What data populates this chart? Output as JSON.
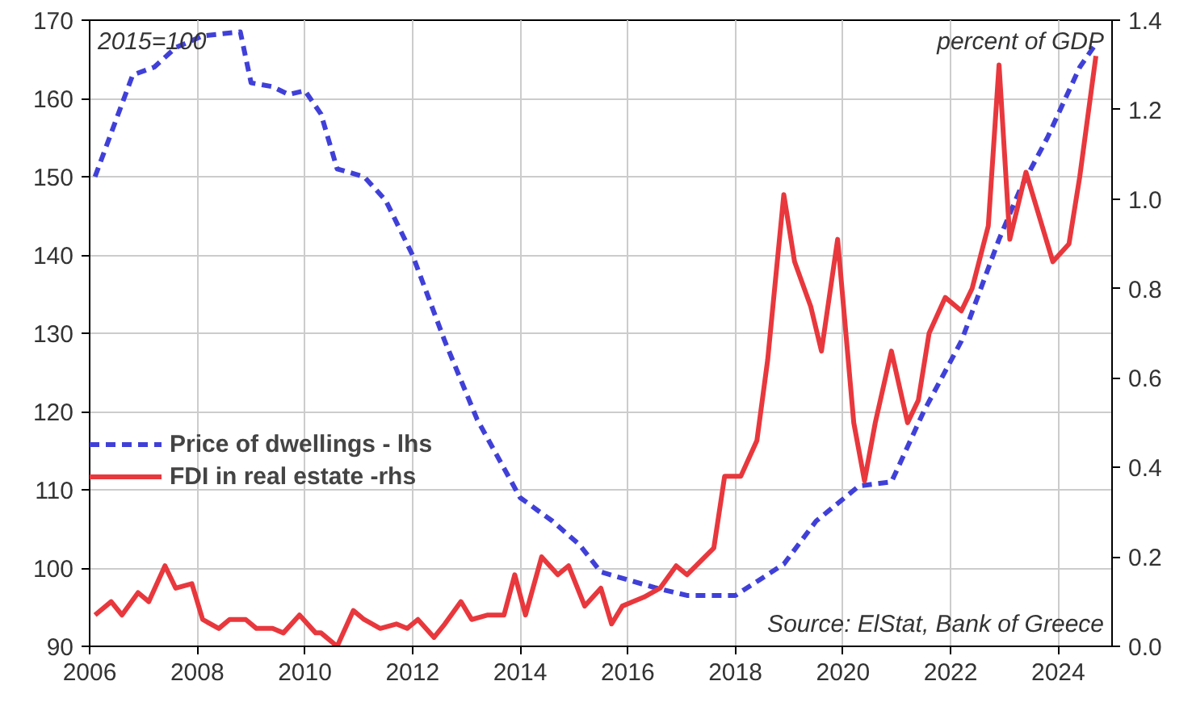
{
  "chart_data": {
    "type": "line",
    "annotations": [
      "2015=100",
      "percent of GDP",
      "Source: ElStat, Bank of Greece"
    ],
    "xlim": [
      2006,
      2025
    ],
    "xticks": [
      2006,
      2008,
      2010,
      2012,
      2014,
      2016,
      2018,
      2020,
      2022,
      2024
    ],
    "ylim": [
      90,
      170
    ],
    "yticks": [
      90,
      100,
      110,
      120,
      130,
      140,
      150,
      160,
      170
    ],
    "y2lim": [
      0,
      1.4
    ],
    "y2ticks": [
      {
        "value": 0,
        "label": "0.0"
      },
      {
        "value": 0.2,
        "label": "0.2"
      },
      {
        "value": 0.4,
        "label": "0.4"
      },
      {
        "value": 0.6,
        "label": "0.6"
      },
      {
        "value": 0.8,
        "label": "0.8"
      },
      {
        "value": 1.0,
        "label": "1.0"
      },
      {
        "value": 1.2,
        "label": "1.2"
      },
      {
        "value": 1.4,
        "label": "1.4"
      }
    ],
    "grid": true,
    "legend": "left",
    "series": [
      {
        "name": "Price of dwellings - lhs",
        "color": "#4040d8",
        "line_style": "dashed",
        "x": [
          2006.1,
          2006.8,
          2007.2,
          2007.6,
          2008.1,
          2008.8,
          2009.0,
          2009.4,
          2009.7,
          2010.0,
          2010.3,
          2010.6,
          2011.1,
          2011.5,
          2012.0,
          2012.6,
          2013.2,
          2014.0,
          2014.6,
          2015.1,
          2015.5,
          2016.0,
          2016.5,
          2017.1,
          2018.0,
          2018.9,
          2019.5,
          2020.3,
          2020.9,
          2021.5,
          2022.2,
          2022.9,
          2023.3,
          2023.8,
          2024.4,
          2024.7
        ],
        "values": [
          150,
          163,
          164,
          166.5,
          168,
          168.5,
          162,
          161.5,
          160.5,
          161,
          158,
          151,
          150,
          147,
          140,
          129,
          119,
          109,
          106,
          103,
          99.5,
          98.5,
          97.5,
          96.5,
          96.5,
          100.5,
          106,
          110.5,
          111,
          120,
          129,
          142,
          148.5,
          155,
          164,
          167
        ]
      },
      {
        "name": "FDI in real estate -rhs",
        "color": "#e8383d",
        "axis": "y2",
        "line_style": "solid",
        "x": [
          2006.1,
          2006.4,
          2006.6,
          2006.9,
          2007.1,
          2007.4,
          2007.6,
          2007.9,
          2008.1,
          2008.4,
          2008.6,
          2008.9,
          2009.1,
          2009.4,
          2009.6,
          2009.9,
          2010.2,
          2010.3,
          2010.6,
          2010.9,
          2011.1,
          2011.4,
          2011.7,
          2011.9,
          2012.1,
          2012.4,
          2012.6,
          2012.9,
          2013.1,
          2013.4,
          2013.7,
          2013.9,
          2014.1,
          2014.4,
          2014.7,
          2014.9,
          2015.2,
          2015.5,
          2015.7,
          2015.9,
          2016.1,
          2016.3,
          2016.6,
          2016.9,
          2017.1,
          2017.6,
          2017.8,
          2018.1,
          2018.4,
          2018.6,
          2018.9,
          2019.1,
          2019.4,
          2019.6,
          2019.9,
          2020.2,
          2020.4,
          2020.6,
          2020.9,
          2021.2,
          2021.4,
          2021.6,
          2021.9,
          2022.2,
          2022.4,
          2022.7,
          2022.9,
          2023.1,
          2023.4,
          2023.9,
          2024.2,
          2024.4,
          2024.7
        ],
        "values": [
          0.07,
          0.1,
          0.07,
          0.12,
          0.1,
          0.18,
          0.13,
          0.14,
          0.06,
          0.04,
          0.06,
          0.06,
          0.04,
          0.04,
          0.03,
          0.07,
          0.03,
          0.03,
          0.0,
          0.08,
          0.06,
          0.04,
          0.05,
          0.04,
          0.06,
          0.02,
          0.05,
          0.1,
          0.06,
          0.07,
          0.07,
          0.16,
          0.07,
          0.2,
          0.16,
          0.18,
          0.09,
          0.13,
          0.05,
          0.09,
          0.1,
          0.11,
          0.13,
          0.18,
          0.16,
          0.22,
          0.38,
          0.38,
          0.46,
          0.64,
          1.01,
          0.86,
          0.76,
          0.66,
          0.91,
          0.5,
          0.37,
          0.5,
          0.66,
          0.5,
          0.55,
          0.7,
          0.78,
          0.75,
          0.8,
          0.94,
          1.3,
          0.91,
          1.06,
          0.86,
          0.9,
          1.05,
          1.32
        ]
      }
    ]
  }
}
